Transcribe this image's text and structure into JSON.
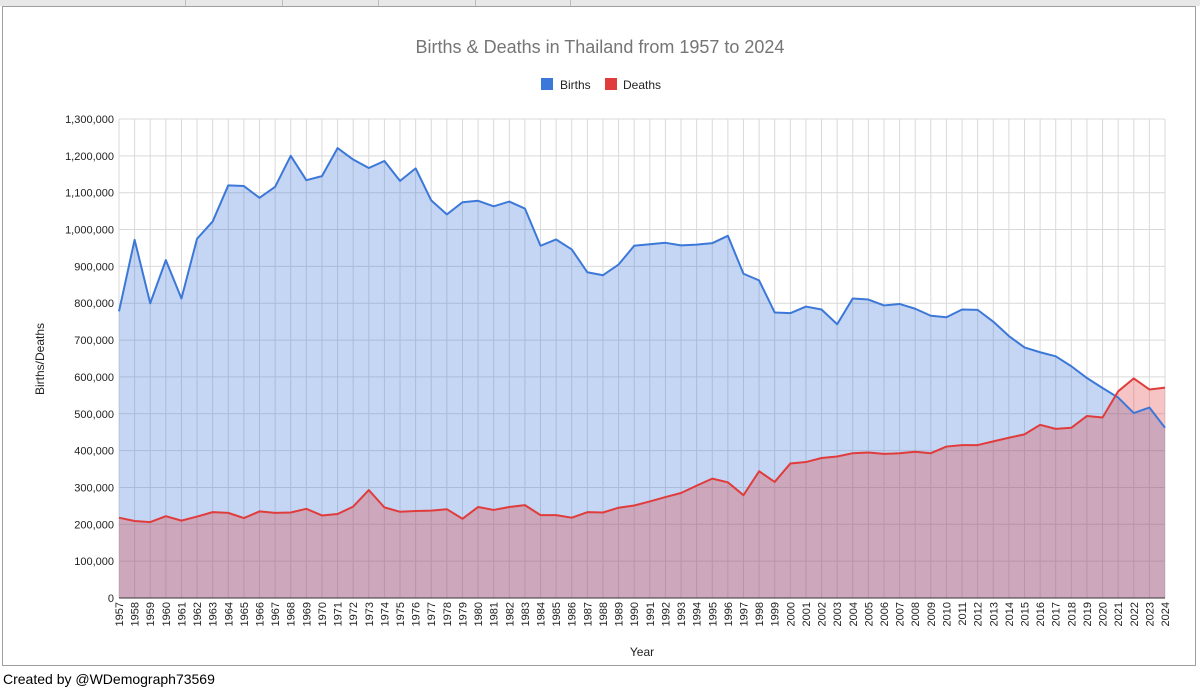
{
  "chart_data": {
    "type": "area",
    "title": "Births & Deaths in Thailand from 1957 to 2024",
    "xlabel": "Year",
    "ylabel": "Births/Deaths",
    "ylim": [
      0,
      1300000
    ],
    "ytick_step": 100000,
    "ytick_labels": [
      "0",
      "100,000",
      "200,000",
      "300,000",
      "400,000",
      "500,000",
      "600,000",
      "700,000",
      "800,000",
      "900,000",
      "1,000,000",
      "1,100,000",
      "1,200,000",
      "1,300,000"
    ],
    "grid": true,
    "legend_position": "top-center",
    "x": [
      "1957",
      "1958",
      "1959",
      "1960",
      "1961",
      "1962",
      "1963",
      "1964",
      "1965",
      "1966",
      "1967",
      "1968",
      "1969",
      "1970",
      "1971",
      "1972",
      "1973",
      "1974",
      "1975",
      "1976",
      "1977",
      "1978",
      "1979",
      "1980",
      "1981",
      "1982",
      "1983",
      "1984",
      "1985",
      "1986",
      "1987",
      "1988",
      "1989",
      "1990",
      "1991",
      "1992",
      "1993",
      "1994",
      "1995",
      "1996",
      "1997",
      "1998",
      "1999",
      "2000",
      "2001",
      "2002",
      "2003",
      "2004",
      "2005",
      "2006",
      "2007",
      "2008",
      "2009",
      "2010",
      "2011",
      "2012",
      "2013",
      "2014",
      "2015",
      "2016",
      "2017",
      "2018",
      "2019",
      "2020",
      "2021",
      "2022",
      "2023",
      "2024"
    ],
    "series": [
      {
        "name": "Births",
        "color": "#3c78d8",
        "fill": "#c6dafc",
        "values": [
          778000,
          972000,
          800000,
          917000,
          813000,
          975000,
          1022000,
          1120000,
          1118000,
          1086000,
          1116000,
          1200000,
          1134000,
          1145000,
          1221000,
          1190000,
          1167000,
          1186000,
          1132000,
          1166000,
          1079000,
          1041000,
          1074000,
          1078000,
          1063000,
          1076000,
          1057000,
          956000,
          973000,
          946000,
          884000,
          876000,
          905000,
          956000,
          960000,
          964000,
          957000,
          959000,
          963000,
          983000,
          880000,
          862000,
          775000,
          773000,
          791000,
          783000,
          743000,
          813000,
          810000,
          794000,
          798000,
          785000,
          766000,
          762000,
          783000,
          782000,
          750000,
          711000,
          680000,
          667000,
          656000,
          629000,
          597000,
          570000,
          544000,
          502000,
          517000,
          462000
        ]
      },
      {
        "name": "Deaths",
        "color": "#e03c3c",
        "fill": "#f4b7b7",
        "values": [
          218000,
          209000,
          206000,
          222000,
          210000,
          221000,
          233000,
          231000,
          217000,
          235000,
          231000,
          232000,
          242000,
          224000,
          228000,
          248000,
          293000,
          246000,
          234000,
          236000,
          237000,
          241000,
          215000,
          247000,
          239000,
          247000,
          252000,
          225000,
          225000,
          218000,
          233000,
          232000,
          245000,
          251000,
          262000,
          274000,
          285000,
          305000,
          324000,
          314000,
          279000,
          344000,
          315000,
          365000,
          369000,
          380000,
          384000,
          393000,
          395000,
          391000,
          393000,
          397000,
          393000,
          411000,
          415000,
          415000,
          425000,
          435000,
          444000,
          470000,
          459000,
          462000,
          494000,
          490000,
          561000,
          596000,
          566000,
          571000
        ]
      }
    ]
  },
  "credit": "Created by @WDemograph73569"
}
